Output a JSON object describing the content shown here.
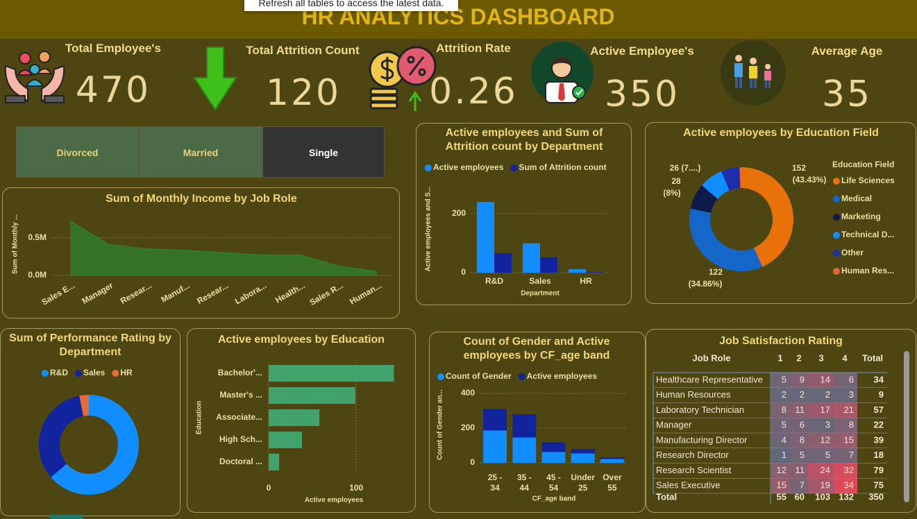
{
  "tooltip": "Refresh all tables to access the latest data.",
  "title": "HR ANALYTICS DASHBOARD",
  "kpis": [
    {
      "label": "Total Employee's",
      "value": 470
    },
    {
      "label": "Total Attrition Count",
      "value": 120
    },
    {
      "label": "Attrition Rate",
      "value": 0.26
    },
    {
      "label": "Active Employee's",
      "value": 350
    },
    {
      "label": "Average Age",
      "value": 35
    }
  ],
  "slicer": {
    "items": [
      "Divorced",
      "Married",
      "Single"
    ],
    "selected": "Single"
  },
  "chart_data": [
    {
      "type": "area",
      "title": "Sum of Monthly Income by Job Role",
      "y_label": "Sum of Monthly ...",
      "categories": [
        "Sales E...",
        "Manager",
        "Resear...",
        "Manuf...",
        "Resear...",
        "Labora...",
        "Health...",
        "Sales R...",
        "Human..."
      ],
      "values": [
        0.72,
        0.41,
        0.35,
        0.33,
        0.3,
        0.27,
        0.27,
        0.12,
        0.05
      ],
      "color": "#2f7d2a",
      "ylim": [
        0,
        0.8
      ],
      "yticks": [
        {
          "value": 0,
          "label": "0.0M"
        },
        {
          "value": 0.5,
          "label": "0.5M"
        }
      ],
      "grid": true
    },
    {
      "type": "bar",
      "title": "Active employees and Sum of Attrition count by Department",
      "x_label": "Department",
      "y_label": "Active employees and S...",
      "categories": [
        "R&D",
        "Sales",
        "HR"
      ],
      "series": [
        {
          "name": "Active employees",
          "color": "#118dff",
          "values": [
            239,
            99,
            12
          ]
        },
        {
          "name": "Sum of Attrition count",
          "color": "#12239e",
          "values": [
            66,
            52,
            2
          ]
        }
      ],
      "ylim": [
        0,
        260
      ],
      "yticks": [
        0,
        200
      ],
      "grid": true,
      "legend": "top-left"
    },
    {
      "type": "donut",
      "title": "Active employees by Education Field",
      "legend_title": "Education Field",
      "categories": [
        "Life Sciences",
        "Medical",
        "Marketing",
        "Technical D...",
        "Other",
        "Human Res..."
      ],
      "values": [
        152,
        122,
        28,
        26,
        20,
        2
      ],
      "value_labels": [
        "152",
        "122",
        "28",
        "26 (7....)",
        null,
        null
      ],
      "percent_labels": [
        "(43.43%)",
        "(34.86%)",
        "(8%)",
        null,
        null,
        null
      ],
      "colors": [
        "#e8710a",
        "#1467c8",
        "#0d1b4c",
        "#118dff",
        "#1e2da8",
        "#e0663a"
      ],
      "legend": "right"
    },
    {
      "type": "donut",
      "title": "Sum of Performance Rating by Department",
      "categories": [
        "R&D",
        "Sales",
        "HR"
      ],
      "values": [
        940,
        490,
        45
      ],
      "colors": [
        "#118dff",
        "#12239e",
        "#e66c37"
      ],
      "legend": "top"
    },
    {
      "type": "barh",
      "title": "Active employees by Education",
      "x_label": "Active employees",
      "y_label": "Education",
      "categories": [
        "Bachelor'...",
        "Master's ...",
        "Associate...",
        "High Sch...",
        "Doctoral ..."
      ],
      "values": [
        143,
        99,
        58,
        38,
        12
      ],
      "color": "#41a36b",
      "xlim": [
        0,
        145
      ],
      "xticks": [
        0,
        100
      ],
      "grid": true
    },
    {
      "type": "stacked_bar",
      "title": "Count of Gender and Active employees by CF_age band",
      "x_label": "CF_age band",
      "y_label": "Count of Gender an...",
      "categories": [
        "25 - 34",
        "35 - 44",
        "45 - 54",
        "Under 25",
        "Over 55"
      ],
      "series": [
        {
          "name": "Count of Gender",
          "color": "#118dff",
          "values": [
            186,
            146,
            62,
            54,
            22
          ]
        },
        {
          "name": "Active employees",
          "color": "#12239e",
          "values": [
            124,
            134,
            56,
            26,
            10
          ]
        }
      ],
      "ylim": [
        0,
        440
      ],
      "yticks": [
        0,
        200,
        400
      ],
      "grid": true,
      "legend": "top-left"
    }
  ],
  "table": {
    "title": "Job Satisfaction Rating",
    "columns": [
      "Job Role",
      "1",
      "2",
      "3",
      "4",
      "Total"
    ],
    "rows": [
      [
        "Healthcare Representative",
        5,
        9,
        14,
        6,
        34
      ],
      [
        "Human Resources",
        2,
        2,
        2,
        3,
        9
      ],
      [
        "Laboratory Technician",
        8,
        11,
        17,
        21,
        57
      ],
      [
        "Manager",
        5,
        6,
        3,
        8,
        22
      ],
      [
        "Manufacturing Director",
        4,
        8,
        12,
        15,
        39
      ],
      [
        "Research Director",
        1,
        5,
        5,
        7,
        18
      ],
      [
        "Research Scientist",
        12,
        11,
        24,
        32,
        79
      ],
      [
        "Sales Executive",
        15,
        7,
        19,
        34,
        75
      ]
    ],
    "total": [
      "Total",
      55,
      60,
      103,
      132,
      350
    ],
    "heatmap": {
      "low": "#62687a",
      "high": "#dc4a5c"
    }
  }
}
